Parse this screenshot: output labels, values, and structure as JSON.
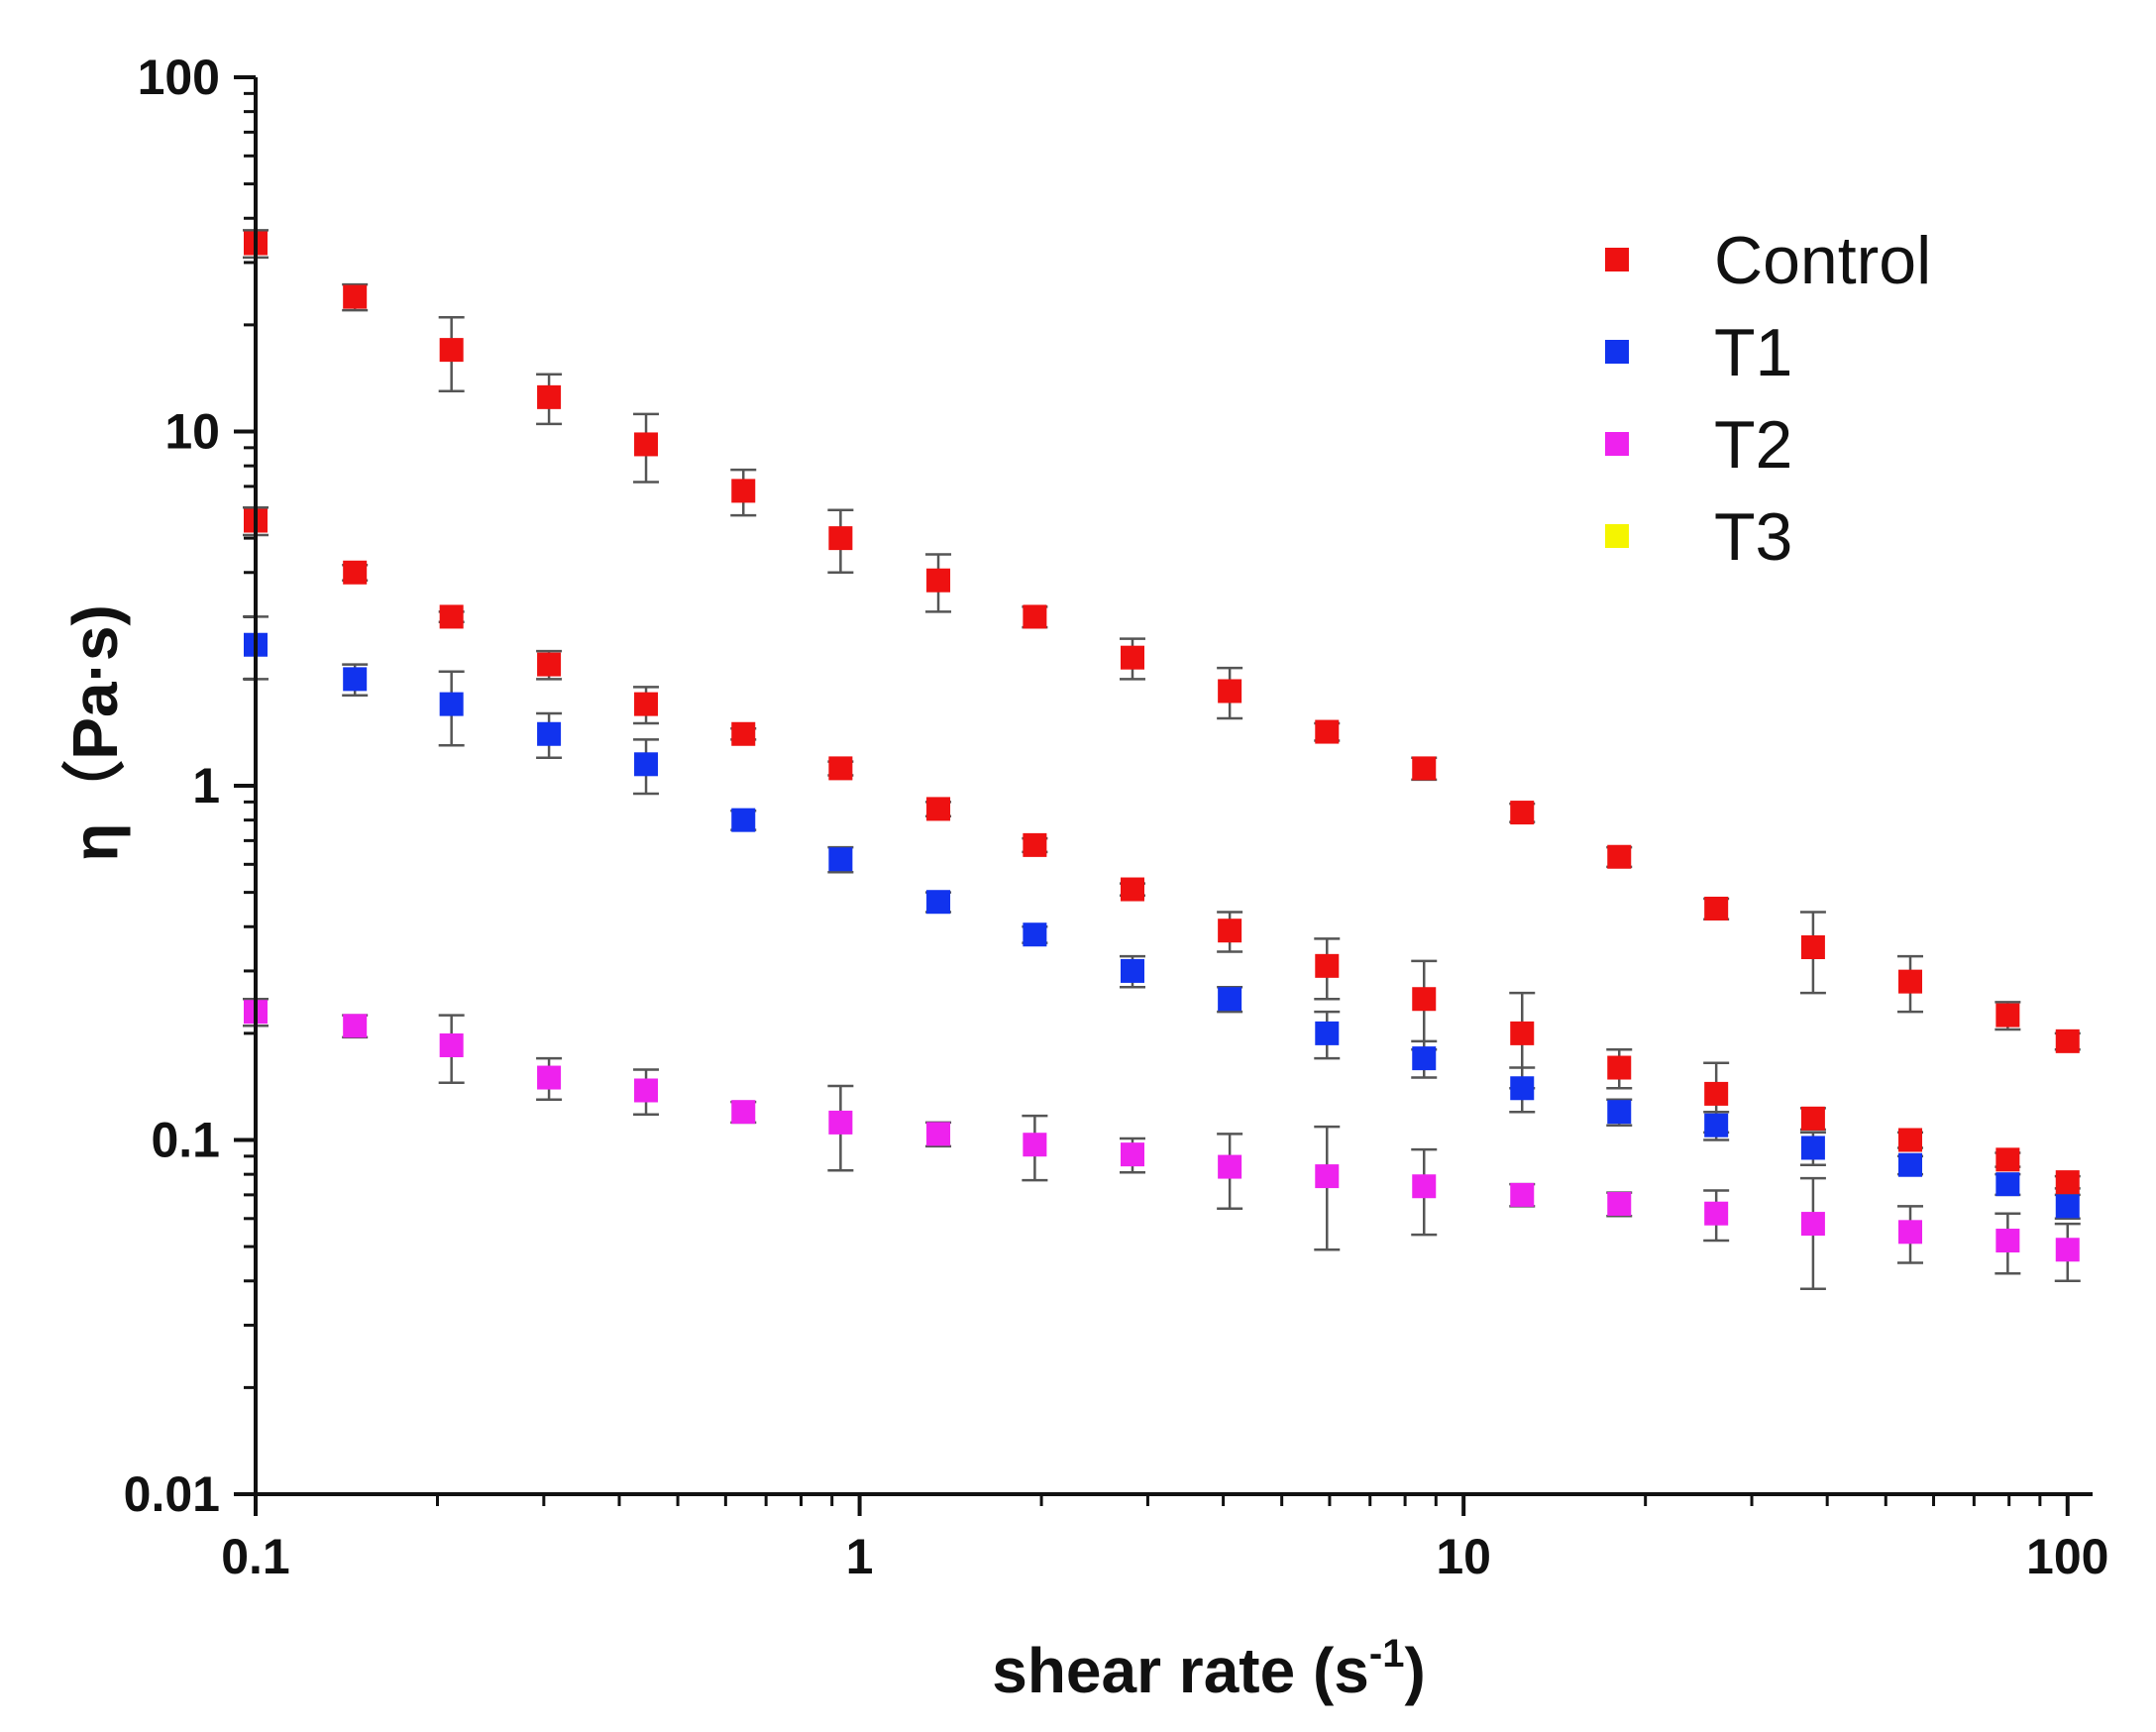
{
  "chart_data": {
    "type": "scatter",
    "title": "",
    "xlabel": "shear rate (s",
    "xlabel_sup": "-1",
    "xlabel_close": ")",
    "ylabel": "η（Pa·s)",
    "xscale": "log",
    "yscale": "log",
    "xlim": [
      0.1,
      110
    ],
    "ylim": [
      0.01,
      100
    ],
    "x_ticks": [
      {
        "value": 0.1,
        "label": "0.1"
      },
      {
        "value": 1,
        "label": "1"
      },
      {
        "value": 10,
        "label": "10"
      },
      {
        "value": 100,
        "label": "100"
      }
    ],
    "y_ticks": [
      {
        "value": 0.01,
        "label": "0.01"
      },
      {
        "value": 0.1,
        "label": "0.1"
      },
      {
        "value": 1,
        "label": "1"
      },
      {
        "value": 10,
        "label": "10"
      },
      {
        "value": 100,
        "label": "100"
      }
    ],
    "legend_position": "top-right",
    "x": [
      0.1,
      0.146,
      0.211,
      0.306,
      0.443,
      0.642,
      0.93,
      1.35,
      1.95,
      2.83,
      4.1,
      5.94,
      8.6,
      12.5,
      18.1,
      26.2,
      37.9,
      54.9,
      79.6,
      100
    ],
    "series": [
      {
        "name": "Control",
        "color": "#ee1111",
        "values": [
          34,
          24,
          17,
          12.5,
          9.2,
          6.8,
          5.0,
          3.8,
          3.0,
          2.3,
          1.85,
          1.42,
          1.12,
          0.84,
          0.63,
          0.45,
          0.35,
          0.28,
          0.225,
          0.19
        ],
        "errors": [
          3,
          2,
          4,
          2,
          2,
          1,
          1,
          0.7,
          0.2,
          0.3,
          0.3,
          0.08,
          0.08,
          0.05,
          0.04,
          0.03,
          0.09,
          0.05,
          0.02,
          0.01
        ]
      },
      {
        "name": "T1",
        "color": "#1133ee",
        "values": [
          2.5,
          2.0,
          1.7,
          1.4,
          1.15,
          0.8,
          0.62,
          0.47,
          0.38,
          0.3,
          0.25,
          0.2,
          0.17,
          0.14,
          0.12,
          0.11,
          0.095,
          0.085,
          0.075,
          0.065
        ],
        "errors": [
          0.5,
          0.2,
          0.4,
          0.2,
          0.2,
          0.05,
          0.05,
          0.03,
          0.02,
          0.03,
          0.02,
          0.03,
          0.02,
          0.02,
          0.01,
          0.01,
          0.01,
          0.005,
          0.005,
          0.005
        ]
      },
      {
        "name": "T2",
        "color": "#ee22ee",
        "values": [
          0.23,
          0.21,
          0.185,
          0.15,
          0.138,
          0.12,
          0.112,
          0.104,
          0.097,
          0.091,
          0.084,
          0.079,
          0.074,
          0.07,
          0.066,
          0.062,
          0.058,
          0.055,
          0.052,
          0.049
        ],
        "errors": [
          0.02,
          0.015,
          0.04,
          0.02,
          0.02,
          0.008,
          0.03,
          0.008,
          0.02,
          0.01,
          0.02,
          0.03,
          0.02,
          0.005,
          0.005,
          0.01,
          0.02,
          0.01,
          0.01,
          0.009
        ]
      },
      {
        "name": "Control",
        "color": "#ee1111",
        "legend": false,
        "values": [
          5.6,
          4.0,
          3.0,
          2.2,
          1.7,
          1.4,
          1.12,
          0.86,
          0.68,
          0.51,
          0.39,
          0.31,
          0.25,
          0.2,
          0.16,
          0.135,
          0.115,
          0.1,
          0.088,
          0.076
        ],
        "errors": [
          0.5,
          0.2,
          0.1,
          0.2,
          0.2,
          0.05,
          0.05,
          0.04,
          0.03,
          0.02,
          0.05,
          0.06,
          0.07,
          0.06,
          0.02,
          0.03,
          0.008,
          0.005,
          0.004,
          0.003
        ]
      }
    ],
    "legend": [
      {
        "name": "Control",
        "color": "#ee1111"
      },
      {
        "name": "T1",
        "color": "#1133ee"
      },
      {
        "name": "T2",
        "color": "#ee22ee"
      },
      {
        "name": "T3",
        "color": "#f5f500"
      }
    ]
  }
}
